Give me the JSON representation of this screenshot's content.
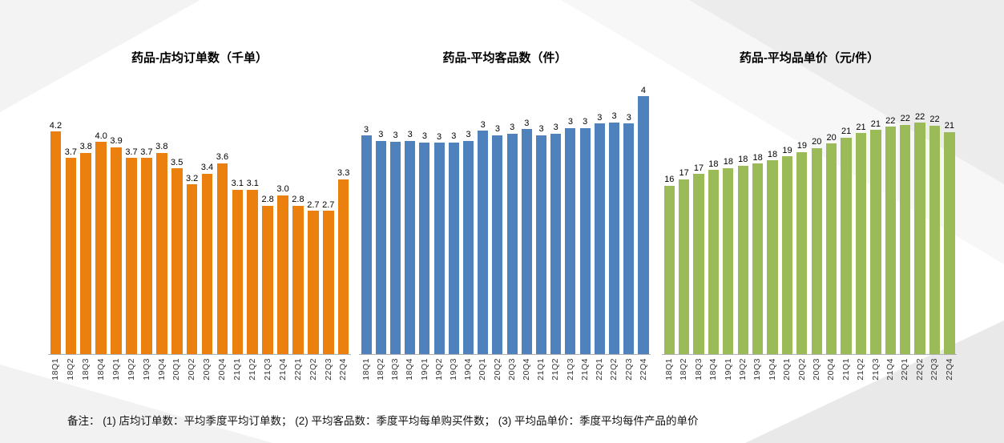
{
  "page": {
    "footnote": "备注：  (1) 店均订单数：平均季度平均订单数；  (2) 平均客品数：季度平均每单购买件数；  (3) 平均品单价：季度平均每件产品的单价"
  },
  "chart_data": [
    {
      "type": "bar",
      "title": "药品-店均订单数（千单）",
      "xlabel": "",
      "ylabel": "",
      "grid": false,
      "legend": "none",
      "bar_color": "#EC800F",
      "ylim": [
        0,
        5.2
      ],
      "categories": [
        "18Q1",
        "18Q2",
        "18Q3",
        "18Q4",
        "19Q1",
        "19Q2",
        "19Q3",
        "19Q4",
        "20Q1",
        "20Q2",
        "20Q3",
        "20Q4",
        "21Q1",
        "21Q2",
        "21Q3",
        "21Q4",
        "22Q1",
        "22Q2",
        "22Q3",
        "22Q4"
      ],
      "values": [
        4.2,
        3.7,
        3.8,
        4.0,
        3.9,
        3.7,
        3.7,
        3.8,
        3.5,
        3.2,
        3.4,
        3.6,
        3.1,
        3.1,
        2.8,
        3.0,
        2.8,
        2.7,
        2.7,
        3.3
      ],
      "labels": [
        "4.2",
        "3.7",
        "3.8",
        "4.0",
        "3.9",
        "3.7",
        "3.7",
        "3.8",
        "3.5",
        "3.2",
        "3.4",
        "3.6",
        "3.1",
        "3.1",
        "2.8",
        "3.0",
        "2.8",
        "2.7",
        "2.7",
        "3.3"
      ]
    },
    {
      "type": "bar",
      "title": "药品-平均客品数（件）",
      "xlabel": "",
      "ylabel": "",
      "grid": false,
      "legend": "none",
      "bar_color": "#4F81BD",
      "ylim": [
        0,
        3.85
      ],
      "categories": [
        "18Q1",
        "18Q2",
        "18Q3",
        "18Q4",
        "19Q1",
        "19Q2",
        "19Q3",
        "19Q4",
        "20Q1",
        "20Q2",
        "20Q3",
        "20Q4",
        "21Q1",
        "21Q2",
        "21Q3",
        "21Q4",
        "22Q1",
        "22Q2",
        "22Q3",
        "22Q4"
      ],
      "values": [
        3,
        3,
        3,
        3,
        3,
        3,
        3,
        3,
        3,
        3,
        3,
        3,
        3,
        3,
        3,
        3,
        3,
        3,
        3,
        4
      ],
      "heights": [
        3.05,
        2.98,
        2.97,
        2.98,
        2.96,
        2.95,
        2.96,
        2.98,
        3.12,
        3.06,
        3.08,
        3.14,
        3.06,
        3.08,
        3.16,
        3.16,
        3.22,
        3.24,
        3.22,
        3.6
      ]
    },
    {
      "type": "bar",
      "title": "药品-平均品单价（元/件）",
      "xlabel": "",
      "ylabel": "",
      "grid": false,
      "legend": "none",
      "bar_color": "#9BBB59",
      "ylim": [
        0,
        26.2
      ],
      "categories": [
        "18Q1",
        "18Q2",
        "18Q3",
        "18Q4",
        "19Q1",
        "19Q2",
        "19Q3",
        "19Q4",
        "20Q1",
        "20Q2",
        "20Q3",
        "20Q4",
        "21Q1",
        "21Q2",
        "21Q3",
        "21Q4",
        "22Q1",
        "22Q2",
        "22Q3",
        "22Q4"
      ],
      "values": [
        16,
        17,
        17,
        18,
        18,
        18,
        18,
        18,
        19,
        19,
        20,
        20,
        21,
        21,
        21,
        22,
        22,
        22,
        22,
        21
      ],
      "heights": [
        16.0,
        16.6,
        17.1,
        17.5,
        17.7,
        17.9,
        18.1,
        18.4,
        18.8,
        19.2,
        19.6,
        20.0,
        20.6,
        21.0,
        21.3,
        21.6,
        21.8,
        22.0,
        21.7,
        21.1
      ]
    }
  ]
}
